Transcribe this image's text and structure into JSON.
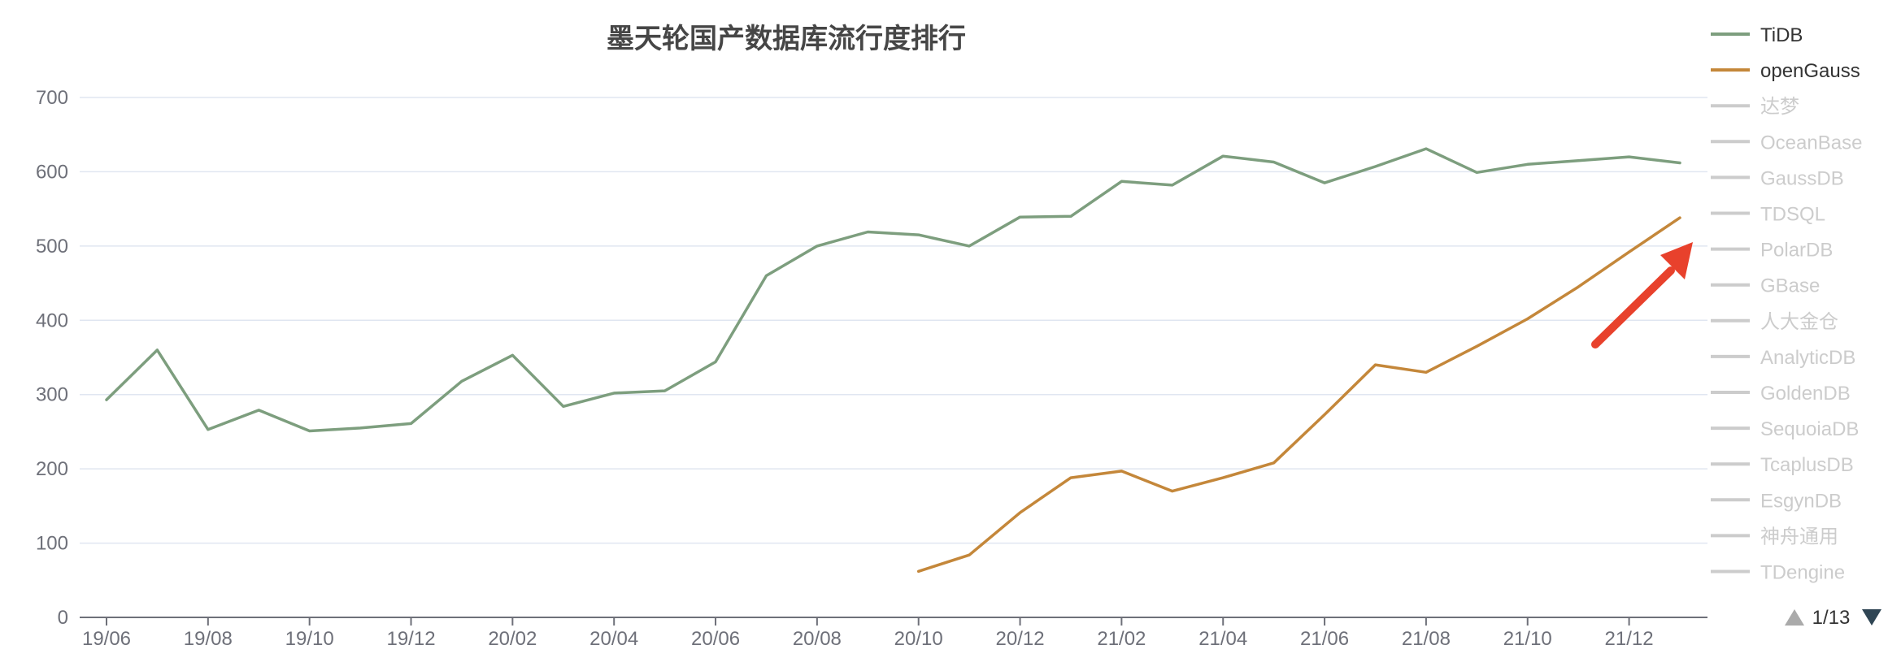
{
  "chart_data": {
    "type": "line",
    "title": "墨天轮国产数据库流行度排行",
    "x": [
      "19/06",
      "19/07",
      "19/08",
      "19/09",
      "19/10",
      "19/11",
      "19/12",
      "20/01",
      "20/02",
      "20/03",
      "20/04",
      "20/05",
      "20/06",
      "20/07",
      "20/08",
      "20/09",
      "20/10",
      "20/11",
      "20/12",
      "21/01",
      "21/02",
      "21/03",
      "21/04",
      "21/05",
      "21/06",
      "21/07",
      "21/08",
      "21/09",
      "21/10",
      "21/11",
      "21/12",
      "22/01"
    ],
    "x_tick_labels": [
      "19/06",
      "19/08",
      "19/10",
      "19/12",
      "20/02",
      "20/04",
      "20/06",
      "20/08",
      "20/10",
      "20/12",
      "21/02",
      "21/04",
      "21/06",
      "21/08",
      "21/10",
      "21/12"
    ],
    "ylim": [
      0,
      700
    ],
    "y_ticks": [
      "0",
      "100",
      "200",
      "300",
      "400",
      "500",
      "600",
      "700"
    ],
    "grid": true,
    "legend_position": "right",
    "series": [
      {
        "name": "TiDB",
        "color": "#7d9e7e",
        "values": [
          293,
          360,
          253,
          279,
          251,
          255,
          261,
          318,
          353,
          284,
          302,
          305,
          344,
          460,
          500,
          519,
          515,
          500,
          539,
          540,
          587,
          582,
          621,
          613,
          585,
          607,
          631,
          599,
          610,
          615,
          620,
          612
        ]
      },
      {
        "name": "openGauss",
        "color": "#c4873a",
        "values": [
          null,
          null,
          null,
          null,
          null,
          null,
          null,
          null,
          null,
          null,
          null,
          null,
          null,
          null,
          null,
          null,
          62,
          84,
          141,
          188,
          197,
          170,
          188,
          208,
          273,
          340,
          330,
          365,
          402,
          445,
          492,
          538
        ]
      }
    ],
    "legend": [
      {
        "name": "TiDB",
        "active": true,
        "color": "#7d9e7e"
      },
      {
        "name": "openGauss",
        "active": true,
        "color": "#c4873a"
      },
      {
        "name": "达梦",
        "active": false
      },
      {
        "name": "OceanBase",
        "active": false
      },
      {
        "name": "GaussDB",
        "active": false
      },
      {
        "name": "TDSQL",
        "active": false
      },
      {
        "name": "PolarDB",
        "active": false
      },
      {
        "name": "GBase",
        "active": false
      },
      {
        "name": "人大金仓",
        "active": false
      },
      {
        "name": "AnalyticDB",
        "active": false
      },
      {
        "name": "GoldenDB",
        "active": false
      },
      {
        "name": "SequoiaDB",
        "active": false
      },
      {
        "name": "TcaplusDB",
        "active": false
      },
      {
        "name": "EsgynDB",
        "active": false
      },
      {
        "name": "神舟通用",
        "active": false
      },
      {
        "name": "TDengine",
        "active": false
      }
    ],
    "legend_page": "1/13",
    "colors": {
      "inactive": "#cccccc",
      "grid": "#e0e6f1",
      "axis": "#6e7079",
      "arrow": "#e8412c"
    }
  }
}
